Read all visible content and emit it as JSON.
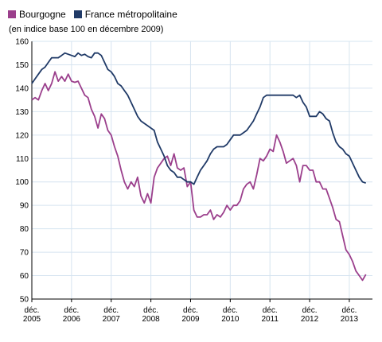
{
  "legend": {
    "items": [
      {
        "label": "Bourgogne",
        "color": "#9b3f8c"
      },
      {
        "label": "France métropolitaine",
        "color": "#203a67"
      }
    ]
  },
  "chart_data": {
    "type": "line",
    "title": "",
    "subtitle": "(en indice base 100 en décembre 2009)",
    "xlabel": "",
    "ylabel": "",
    "ylim": [
      50,
      160
    ],
    "yticks": [
      50,
      60,
      70,
      80,
      90,
      100,
      110,
      120,
      130,
      140,
      150,
      160
    ],
    "xticks": [
      {
        "line1": "déc.",
        "line2": "2005",
        "x": 2005.917
      },
      {
        "line1": "déc.",
        "line2": "2006",
        "x": 2006.917
      },
      {
        "line1": "déc.",
        "line2": "2007",
        "x": 2007.917
      },
      {
        "line1": "déc.",
        "line2": "2008",
        "x": 2008.917
      },
      {
        "line1": "déc.",
        "line2": "2009",
        "x": 2009.917
      },
      {
        "line1": "déc.",
        "line2": "2010",
        "x": 2010.917
      },
      {
        "line1": "déc.",
        "line2": "2011",
        "x": 2011.917
      },
      {
        "line1": "déc.",
        "line2": "2012",
        "x": 2012.917
      },
      {
        "line1": "déc.",
        "line2": "2013",
        "x": 2013.917
      }
    ],
    "xlim": [
      2005.917,
      2014.5
    ],
    "grid": true,
    "legend_position": "top-left",
    "series": [
      {
        "name": "Bourgogne",
        "color": "#9b3f8c",
        "points": [
          [
            2005.917,
            135
          ],
          [
            2006.0,
            136
          ],
          [
            2006.083,
            135
          ],
          [
            2006.167,
            139
          ],
          [
            2006.25,
            142
          ],
          [
            2006.333,
            139
          ],
          [
            2006.417,
            142
          ],
          [
            2006.5,
            147
          ],
          [
            2006.583,
            143
          ],
          [
            2006.667,
            145
          ],
          [
            2006.75,
            143
          ],
          [
            2006.833,
            146
          ],
          [
            2006.917,
            143
          ],
          [
            2007.0,
            142.5
          ],
          [
            2007.083,
            143
          ],
          [
            2007.167,
            140
          ],
          [
            2007.25,
            137
          ],
          [
            2007.333,
            136
          ],
          [
            2007.417,
            131
          ],
          [
            2007.5,
            128
          ],
          [
            2007.583,
            123
          ],
          [
            2007.667,
            129
          ],
          [
            2007.75,
            127
          ],
          [
            2007.833,
            122
          ],
          [
            2007.917,
            120
          ],
          [
            2008.0,
            115
          ],
          [
            2008.083,
            111
          ],
          [
            2008.167,
            105
          ],
          [
            2008.25,
            100
          ],
          [
            2008.333,
            97
          ],
          [
            2008.417,
            100
          ],
          [
            2008.5,
            98
          ],
          [
            2008.583,
            102
          ],
          [
            2008.667,
            94
          ],
          [
            2008.75,
            91
          ],
          [
            2008.833,
            95
          ],
          [
            2008.917,
            91
          ],
          [
            2009.0,
            102
          ],
          [
            2009.083,
            106
          ],
          [
            2009.167,
            108
          ],
          [
            2009.25,
            110
          ],
          [
            2009.333,
            111
          ],
          [
            2009.417,
            107
          ],
          [
            2009.5,
            112
          ],
          [
            2009.583,
            106
          ],
          [
            2009.667,
            105
          ],
          [
            2009.75,
            106
          ],
          [
            2009.833,
            98
          ],
          [
            2009.917,
            100
          ],
          [
            2010.0,
            88
          ],
          [
            2010.083,
            85
          ],
          [
            2010.167,
            85
          ],
          [
            2010.25,
            86
          ],
          [
            2010.333,
            86
          ],
          [
            2010.417,
            88
          ],
          [
            2010.5,
            84
          ],
          [
            2010.583,
            86
          ],
          [
            2010.667,
            85
          ],
          [
            2010.75,
            87
          ],
          [
            2010.833,
            90
          ],
          [
            2010.917,
            88
          ],
          [
            2011.0,
            90
          ],
          [
            2011.083,
            90
          ],
          [
            2011.167,
            92
          ],
          [
            2011.25,
            97
          ],
          [
            2011.333,
            99
          ],
          [
            2011.417,
            100
          ],
          [
            2011.5,
            97
          ],
          [
            2011.583,
            103
          ],
          [
            2011.667,
            110
          ],
          [
            2011.75,
            109
          ],
          [
            2011.833,
            111
          ],
          [
            2011.917,
            114
          ],
          [
            2012.0,
            113
          ],
          [
            2012.083,
            120
          ],
          [
            2012.167,
            117
          ],
          [
            2012.25,
            113
          ],
          [
            2012.333,
            108
          ],
          [
            2012.417,
            109
          ],
          [
            2012.5,
            110
          ],
          [
            2012.583,
            107
          ],
          [
            2012.667,
            100
          ],
          [
            2012.75,
            107
          ],
          [
            2012.833,
            107
          ],
          [
            2012.917,
            105
          ],
          [
            2013.0,
            105
          ],
          [
            2013.083,
            100
          ],
          [
            2013.167,
            100
          ],
          [
            2013.25,
            97
          ],
          [
            2013.333,
            97
          ],
          [
            2013.417,
            93
          ],
          [
            2013.5,
            89
          ],
          [
            2013.583,
            84
          ],
          [
            2013.667,
            83
          ],
          [
            2013.75,
            77
          ],
          [
            2013.833,
            71
          ],
          [
            2013.917,
            69
          ],
          [
            2014.0,
            66
          ],
          [
            2014.083,
            62
          ],
          [
            2014.167,
            60
          ],
          [
            2014.25,
            58
          ],
          [
            2014.333,
            60.5
          ]
        ]
      },
      {
        "name": "France métropolitaine",
        "color": "#203a67",
        "points": [
          [
            2005.917,
            142
          ],
          [
            2006.0,
            144
          ],
          [
            2006.083,
            146
          ],
          [
            2006.167,
            148
          ],
          [
            2006.25,
            149
          ],
          [
            2006.333,
            151
          ],
          [
            2006.417,
            153
          ],
          [
            2006.5,
            153
          ],
          [
            2006.583,
            153
          ],
          [
            2006.667,
            154
          ],
          [
            2006.75,
            155
          ],
          [
            2006.833,
            154.5
          ],
          [
            2006.917,
            154
          ],
          [
            2007.0,
            153.5
          ],
          [
            2007.083,
            155
          ],
          [
            2007.167,
            154
          ],
          [
            2007.25,
            154.5
          ],
          [
            2007.333,
            153.5
          ],
          [
            2007.417,
            153
          ],
          [
            2007.5,
            155
          ],
          [
            2007.583,
            155
          ],
          [
            2007.667,
            154
          ],
          [
            2007.75,
            151
          ],
          [
            2007.833,
            148
          ],
          [
            2007.917,
            147
          ],
          [
            2008.0,
            145
          ],
          [
            2008.083,
            142
          ],
          [
            2008.167,
            141
          ],
          [
            2008.25,
            139
          ],
          [
            2008.333,
            137
          ],
          [
            2008.417,
            134
          ],
          [
            2008.5,
            131
          ],
          [
            2008.583,
            128
          ],
          [
            2008.667,
            126
          ],
          [
            2008.75,
            125
          ],
          [
            2008.833,
            124
          ],
          [
            2008.917,
            123
          ],
          [
            2009.0,
            122
          ],
          [
            2009.083,
            117
          ],
          [
            2009.167,
            114
          ],
          [
            2009.25,
            111
          ],
          [
            2009.333,
            107
          ],
          [
            2009.417,
            105
          ],
          [
            2009.5,
            104
          ],
          [
            2009.583,
            102
          ],
          [
            2009.667,
            102
          ],
          [
            2009.75,
            101
          ],
          [
            2009.833,
            100
          ],
          [
            2009.917,
            100
          ],
          [
            2010.0,
            99
          ],
          [
            2010.083,
            102
          ],
          [
            2010.167,
            105
          ],
          [
            2010.25,
            107
          ],
          [
            2010.333,
            109
          ],
          [
            2010.417,
            112
          ],
          [
            2010.5,
            114
          ],
          [
            2010.583,
            115
          ],
          [
            2010.667,
            115
          ],
          [
            2010.75,
            115
          ],
          [
            2010.833,
            116
          ],
          [
            2010.917,
            118
          ],
          [
            2011.0,
            120
          ],
          [
            2011.083,
            120
          ],
          [
            2011.167,
            120
          ],
          [
            2011.25,
            121
          ],
          [
            2011.333,
            122
          ],
          [
            2011.417,
            124
          ],
          [
            2011.5,
            126
          ],
          [
            2011.583,
            129
          ],
          [
            2011.667,
            132
          ],
          [
            2011.75,
            136
          ],
          [
            2011.833,
            137
          ],
          [
            2011.917,
            137
          ],
          [
            2012.0,
            137
          ],
          [
            2012.083,
            137
          ],
          [
            2012.167,
            137
          ],
          [
            2012.25,
            137
          ],
          [
            2012.333,
            137
          ],
          [
            2012.417,
            137
          ],
          [
            2012.5,
            137
          ],
          [
            2012.583,
            136
          ],
          [
            2012.667,
            137
          ],
          [
            2012.75,
            134
          ],
          [
            2012.833,
            132
          ],
          [
            2012.917,
            128
          ],
          [
            2013.0,
            128
          ],
          [
            2013.083,
            128
          ],
          [
            2013.167,
            130
          ],
          [
            2013.25,
            129
          ],
          [
            2013.333,
            127
          ],
          [
            2013.417,
            126
          ],
          [
            2013.5,
            121
          ],
          [
            2013.583,
            117
          ],
          [
            2013.667,
            115
          ],
          [
            2013.75,
            114
          ],
          [
            2013.833,
            112
          ],
          [
            2013.917,
            111
          ],
          [
            2014.0,
            108
          ],
          [
            2014.083,
            105
          ],
          [
            2014.167,
            102
          ],
          [
            2014.25,
            100
          ],
          [
            2014.333,
            99.5
          ]
        ]
      }
    ]
  }
}
